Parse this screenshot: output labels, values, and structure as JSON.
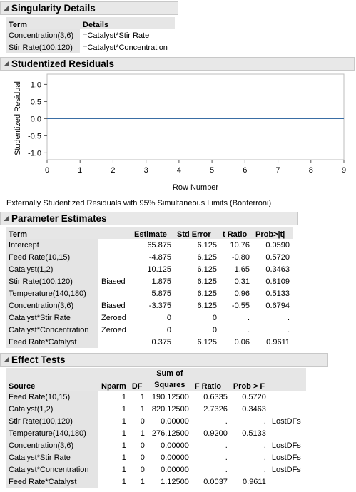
{
  "singularity": {
    "title": "Singularity Details",
    "headers": {
      "term": "Term",
      "details": "Details"
    },
    "rows": [
      {
        "term": "Concentration(3,6)",
        "details": "=Catalyst*Stir Rate"
      },
      {
        "term": "Stir Rate(100,120)",
        "details": "=Catalyst*Concentration"
      }
    ]
  },
  "residuals": {
    "title": "Studentized Residuals",
    "caption": "Externally Studentized Residuals with 95% Simultaneous Limits (Bonferroni)",
    "chart_data": {
      "type": "line",
      "title": "",
      "xlabel": "Row Number",
      "ylabel": "Studentized Residual",
      "x_ticks": [
        "0",
        "1",
        "2",
        "3",
        "4",
        "5",
        "6",
        "7",
        "8",
        "9"
      ],
      "y_ticks": [
        "1.0",
        "0.5",
        "0.0",
        "-0.5",
        "-1.0"
      ],
      "xlim": [
        0,
        9
      ],
      "ylim": [
        -1.2,
        1.3
      ],
      "series": [
        {
          "x": [
            0,
            9
          ],
          "y": [
            0,
            0
          ]
        }
      ],
      "line_color": "#3a6ea5",
      "grid": false
    }
  },
  "parameter_estimates": {
    "title": "Parameter Estimates",
    "headers": {
      "term": "Term",
      "note": "",
      "estimate": "Estimate",
      "stderr": "Std Error",
      "tratio": "t Ratio",
      "prob": "Prob>|t|"
    },
    "rows": [
      {
        "term": "Intercept",
        "note": "",
        "estimate": "65.875",
        "stderr": "6.125",
        "tratio": "10.76",
        "prob": "0.0590"
      },
      {
        "term": "Feed Rate(10,15)",
        "note": "",
        "estimate": "-4.875",
        "stderr": "6.125",
        "tratio": "-0.80",
        "prob": "0.5720"
      },
      {
        "term": "Catalyst(1,2)",
        "note": "",
        "estimate": "10.125",
        "stderr": "6.125",
        "tratio": "1.65",
        "prob": "0.3463"
      },
      {
        "term": "Stir Rate(100,120)",
        "note": "Biased",
        "estimate": "1.875",
        "stderr": "6.125",
        "tratio": "0.31",
        "prob": "0.8109"
      },
      {
        "term": "Temperature(140,180)",
        "note": "",
        "estimate": "5.875",
        "stderr": "6.125",
        "tratio": "0.96",
        "prob": "0.5133"
      },
      {
        "term": "Concentration(3,6)",
        "note": "Biased",
        "estimate": "-3.375",
        "stderr": "6.125",
        "tratio": "-0.55",
        "prob": "0.6794"
      },
      {
        "term": "Catalyst*Stir Rate",
        "note": "Zeroed",
        "estimate": "0",
        "stderr": "0",
        "tratio": ".",
        "prob": "."
      },
      {
        "term": "Catalyst*Concentration",
        "note": "Zeroed",
        "estimate": "0",
        "stderr": "0",
        "tratio": ".",
        "prob": "."
      },
      {
        "term": "Feed Rate*Catalyst",
        "note": "",
        "estimate": "0.375",
        "stderr": "6.125",
        "tratio": "0.06",
        "prob": "0.9611"
      }
    ]
  },
  "effect_tests": {
    "title": "Effect Tests",
    "headers": {
      "source": "Source",
      "nparm": "Nparm",
      "df": "DF",
      "ss_line1": "Sum of",
      "ss_line2": "Squares",
      "fratio": "F Ratio",
      "prob": "Prob > F",
      "note": ""
    },
    "rows": [
      {
        "source": "Feed Rate(10,15)",
        "nparm": "1",
        "df": "1",
        "ss": "190.12500",
        "fratio": "0.6335",
        "prob": "0.5720",
        "note": ""
      },
      {
        "source": "Catalyst(1,2)",
        "nparm": "1",
        "df": "1",
        "ss": "820.12500",
        "fratio": "2.7326",
        "prob": "0.3463",
        "note": ""
      },
      {
        "source": "Stir Rate(100,120)",
        "nparm": "1",
        "df": "0",
        "ss": "0.00000",
        "fratio": ".",
        "prob": ".",
        "note": "LostDFs"
      },
      {
        "source": "Temperature(140,180)",
        "nparm": "1",
        "df": "1",
        "ss": "276.12500",
        "fratio": "0.9200",
        "prob": "0.5133",
        "note": ""
      },
      {
        "source": "Concentration(3,6)",
        "nparm": "1",
        "df": "0",
        "ss": "0.00000",
        "fratio": ".",
        "prob": ".",
        "note": "LostDFs"
      },
      {
        "source": "Catalyst*Stir Rate",
        "nparm": "1",
        "df": "0",
        "ss": "0.00000",
        "fratio": ".",
        "prob": ".",
        "note": "LostDFs"
      },
      {
        "source": "Catalyst*Concentration",
        "nparm": "1",
        "df": "0",
        "ss": "0.00000",
        "fratio": ".",
        "prob": ".",
        "note": "LostDFs"
      },
      {
        "source": "Feed Rate*Catalyst",
        "nparm": "1",
        "df": "1",
        "ss": "1.12500",
        "fratio": "0.0037",
        "prob": "0.9611",
        "note": ""
      }
    ]
  }
}
